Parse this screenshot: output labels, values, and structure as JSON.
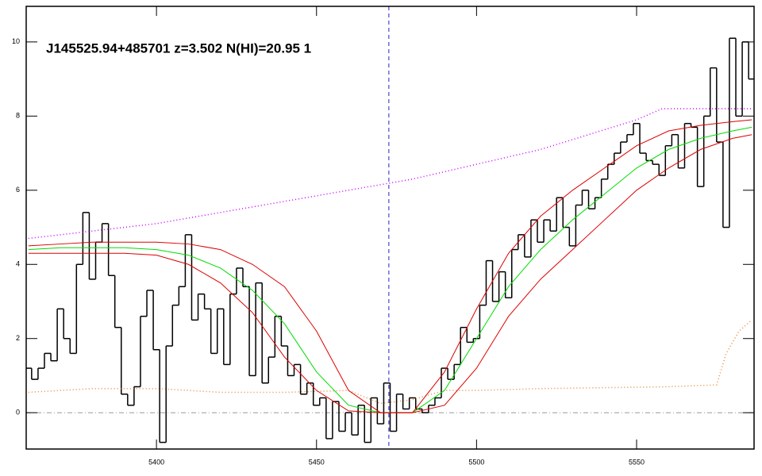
{
  "chart_data": {
    "type": "line",
    "annotation": "J145525.94+485701 z=3.502 N(HI)=20.95 1",
    "xlim": [
      5359.3,
      5586.7
    ],
    "ylim": [
      -0.98,
      10.96
    ],
    "xticks": [
      5400,
      5450,
      5500,
      5550
    ],
    "yticks": [
      0,
      2,
      4,
      6,
      8,
      10
    ],
    "hlines": [
      0
    ],
    "vlines": [
      5472.6
    ],
    "series": [
      {
        "style": "step",
        "color": "#000000",
        "x": [
          5360,
          5362,
          5364,
          5366,
          5368,
          5370,
          5372,
          5374,
          5376,
          5378,
          5380,
          5382,
          5384,
          5386,
          5388,
          5390,
          5392,
          5394,
          5396,
          5398,
          5400,
          5402,
          5404,
          5406,
          5408,
          5410,
          5412,
          5414,
          5416,
          5418,
          5420,
          5422,
          5424,
          5426,
          5428,
          5430,
          5432,
          5434,
          5436,
          5438,
          5440,
          5442,
          5444,
          5446,
          5448,
          5450,
          5452,
          5454,
          5456,
          5458,
          5460,
          5462,
          5464,
          5466,
          5468,
          5470,
          5472,
          5474,
          5476,
          5478,
          5480,
          5482,
          5484,
          5486,
          5488,
          5490,
          5492,
          5494,
          5496,
          5498,
          5500,
          5502,
          5504,
          5506,
          5508,
          5510,
          5512,
          5514,
          5516,
          5518,
          5520,
          5522,
          5524,
          5526,
          5528,
          5530,
          5532,
          5534,
          5536,
          5538,
          5540,
          5542,
          5544,
          5546,
          5548,
          5550,
          5552,
          5554,
          5556,
          5558,
          5560,
          5562,
          5564,
          5566,
          5568,
          5570,
          5572,
          5574,
          5576,
          5578,
          5580,
          5582,
          5584,
          5586
        ],
        "values": [
          1.2,
          0.9,
          1.2,
          1.6,
          1.4,
          2.8,
          2.0,
          1.6,
          4.0,
          5.4,
          3.6,
          4.6,
          5.1,
          3.7,
          2.3,
          0.5,
          0.2,
          0.7,
          2.6,
          3.3,
          1.7,
          -0.8,
          1.8,
          2.9,
          3.4,
          4.8,
          2.5,
          3.2,
          2.8,
          1.6,
          2.8,
          1.3,
          3.2,
          3.9,
          3.4,
          1.0,
          3.5,
          0.8,
          1.5,
          2.6,
          1.8,
          1.0,
          1.3,
          0.5,
          0.8,
          0.2,
          0.4,
          -0.7,
          0.3,
          -0.5,
          0.0,
          -0.6,
          0.2,
          -0.8,
          0.4,
          -0.3,
          0.8,
          -0.5,
          0.5,
          0.1,
          0.4,
          0.1,
          0.0,
          0.2,
          0.4,
          1.2,
          0.9,
          1.3,
          2.3,
          1.9,
          2.0,
          2.9,
          4.1,
          3.0,
          3.8,
          3.1,
          4.4,
          4.8,
          4.2,
          5.2,
          4.6,
          5.2,
          4.9,
          5.8,
          5.0,
          4.5,
          5.6,
          6.0,
          5.5,
          5.8,
          6.3,
          6.7,
          7.0,
          7.3,
          7.5,
          7.8,
          7.0,
          6.8,
          6.7,
          6.4,
          7.2,
          7.5,
          6.6,
          7.8,
          7.7,
          6.1,
          8.0,
          9.3,
          7.3,
          5.0,
          10.1,
          8.0,
          10.0,
          9.0
        ]
      },
      {
        "style": "dotted",
        "color": "#cc00ff",
        "x": [
          5360,
          5400,
          5440,
          5480,
          5520,
          5550,
          5558,
          5586
        ],
        "values": [
          4.7,
          5.1,
          5.7,
          6.3,
          7.1,
          7.9,
          8.2,
          8.2
        ]
      },
      {
        "style": "dotted",
        "color": "#e08a3a",
        "x": [
          5360,
          5380,
          5400,
          5420,
          5440,
          5460,
          5470,
          5480,
          5490,
          5500,
          5520,
          5560,
          5575,
          5578,
          5582,
          5586
        ],
        "values": [
          0.55,
          0.65,
          0.65,
          0.55,
          0.55,
          0.6,
          0.25,
          0.35,
          0.6,
          0.6,
          0.65,
          0.7,
          0.75,
          1.6,
          2.2,
          2.5
        ]
      },
      {
        "style": "solid",
        "color": "#00dd00",
        "x": [
          5360,
          5370,
          5380,
          5390,
          5400,
          5410,
          5420,
          5430,
          5440,
          5450,
          5460,
          5470,
          5480,
          5490,
          5500,
          5510,
          5520,
          5530,
          5540,
          5550,
          5560,
          5570,
          5580,
          5586
        ],
        "values": [
          4.4,
          4.45,
          4.45,
          4.45,
          4.4,
          4.25,
          3.9,
          3.3,
          2.4,
          1.1,
          0.2,
          0.0,
          0.0,
          0.6,
          2.0,
          3.4,
          4.4,
          5.2,
          5.9,
          6.6,
          7.1,
          7.4,
          7.6,
          7.7
        ]
      },
      {
        "style": "solid",
        "color": "#dd0000",
        "x": [
          5360,
          5370,
          5380,
          5390,
          5400,
          5410,
          5420,
          5430,
          5440,
          5450,
          5460,
          5470,
          5480,
          5490,
          5500,
          5510,
          5520,
          5530,
          5540,
          5550,
          5560,
          5570,
          5580,
          5586
        ],
        "values": [
          4.5,
          4.55,
          4.6,
          4.6,
          4.6,
          4.55,
          4.4,
          4.0,
          3.4,
          2.2,
          0.6,
          0.0,
          0.0,
          1.1,
          2.8,
          4.3,
          5.3,
          6.0,
          6.6,
          7.2,
          7.6,
          7.75,
          7.85,
          7.9
        ]
      },
      {
        "style": "solid",
        "color": "#dd0000",
        "x": [
          5360,
          5370,
          5380,
          5390,
          5400,
          5410,
          5420,
          5430,
          5440,
          5450,
          5460,
          5470,
          5480,
          5490,
          5500,
          5510,
          5520,
          5530,
          5540,
          5550,
          5560,
          5570,
          5580,
          5586
        ],
        "values": [
          4.3,
          4.3,
          4.3,
          4.3,
          4.25,
          4.0,
          3.5,
          2.7,
          1.5,
          0.6,
          0.05,
          0.0,
          0.0,
          0.2,
          1.2,
          2.6,
          3.6,
          4.4,
          5.2,
          6.0,
          6.6,
          7.1,
          7.4,
          7.5
        ]
      }
    ]
  }
}
